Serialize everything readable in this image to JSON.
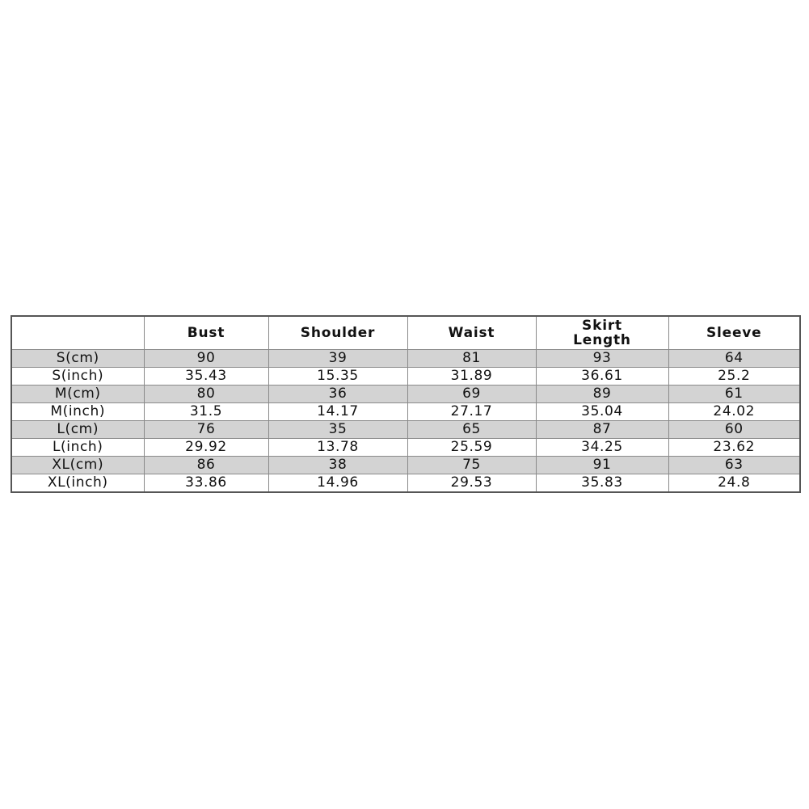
{
  "table": {
    "headers": [
      "",
      "Bust",
      "Shoulder",
      "Waist",
      "Skirt Length",
      "Sleeve"
    ],
    "rows": [
      [
        "S(cm)",
        "90",
        "39",
        "81",
        "93",
        "64"
      ],
      [
        "S(inch)",
        "35.43",
        "15.35",
        "31.89",
        "36.61",
        "25.2"
      ],
      [
        "M(cm)",
        "80",
        "36",
        "69",
        "89",
        "61"
      ],
      [
        "M(inch)",
        "31.5",
        "14.17",
        "27.17",
        "35.04",
        "24.02"
      ],
      [
        "L(cm)",
        "76",
        "35",
        "65",
        "87",
        "60"
      ],
      [
        "L(inch)",
        "29.92",
        "13.78",
        "25.59",
        "34.25",
        "23.62"
      ],
      [
        "XL(cm)",
        "86",
        "38",
        "75",
        "91",
        "63"
      ],
      [
        "XL(inch)",
        "33.86",
        "14.96",
        "29.53",
        "35.83",
        "24.8"
      ]
    ],
    "shade_color": "#d3d3d3"
  }
}
